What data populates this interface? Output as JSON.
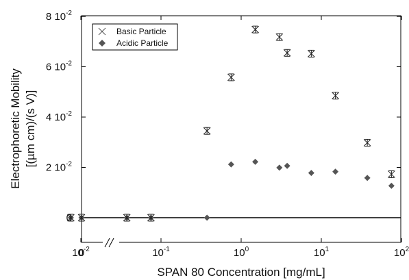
{
  "chart_data": {
    "type": "scatter",
    "xlabel": "SPAN 80 Concentration [mg/mL]",
    "ylabel": [
      "Electrophoretic Mobility",
      "[(µm cm)/(s V)]"
    ],
    "xscale": "log with break at zero",
    "ylim": [
      -0.01,
      0.08
    ],
    "y_ticks": [
      {
        "value": 0.0,
        "base": "0",
        "exp": ""
      },
      {
        "value": 0.02,
        "base": "2 10",
        "exp": "-2"
      },
      {
        "value": 0.04,
        "base": "4 10",
        "exp": "-2"
      },
      {
        "value": 0.06,
        "base": "6 10",
        "exp": "-2"
      },
      {
        "value": 0.08,
        "base": "8 10",
        "exp": "-2"
      }
    ],
    "x_ticks": [
      {
        "value": 0,
        "base": "0",
        "exp": ""
      },
      {
        "value": 0.01,
        "base": "10",
        "exp": "-2"
      },
      {
        "value": 0.1,
        "base": "10",
        "exp": "-1"
      },
      {
        "value": 1,
        "base": "10",
        "exp": "0"
      },
      {
        "value": 10,
        "base": "10",
        "exp": "1"
      },
      {
        "value": 100,
        "base": "10",
        "exp": "2"
      }
    ],
    "legend_position": "top-left",
    "grid": false,
    "series": [
      {
        "name": "Basic Particle",
        "marker": "x",
        "error_bars": true,
        "points": [
          {
            "x": 0,
            "y": 0.0
          },
          {
            "x": 0.0075,
            "y": 0.0
          },
          {
            "x": 0.0375,
            "y": 0.0
          },
          {
            "x": 0.075,
            "y": 0.0
          },
          {
            "x": 0.375,
            "y": 0.0345
          },
          {
            "x": 0.75,
            "y": 0.0558
          },
          {
            "x": 1.5,
            "y": 0.0748
          },
          {
            "x": 3.0,
            "y": 0.0718
          },
          {
            "x": 3.75,
            "y": 0.0655
          },
          {
            "x": 7.5,
            "y": 0.0652
          },
          {
            "x": 15,
            "y": 0.0485
          },
          {
            "x": 37.5,
            "y": 0.0298
          },
          {
            "x": 75,
            "y": 0.0173
          }
        ]
      },
      {
        "name": "Acidic Particle",
        "marker": "diamond",
        "error_bars": false,
        "points": [
          {
            "x": 0,
            "y": 0.0
          },
          {
            "x": 0.0075,
            "y": 0.0
          },
          {
            "x": 0.0375,
            "y": 0.0
          },
          {
            "x": 0.075,
            "y": 0.0
          },
          {
            "x": 0.375,
            "y": 0.0
          },
          {
            "x": 0.75,
            "y": 0.0212
          },
          {
            "x": 1.5,
            "y": 0.0222
          },
          {
            "x": 3.0,
            "y": 0.0199
          },
          {
            "x": 3.75,
            "y": 0.0206
          },
          {
            "x": 7.5,
            "y": 0.0178
          },
          {
            "x": 15,
            "y": 0.0183
          },
          {
            "x": 37.5,
            "y": 0.0158
          },
          {
            "x": 75,
            "y": 0.0127
          }
        ]
      }
    ]
  }
}
